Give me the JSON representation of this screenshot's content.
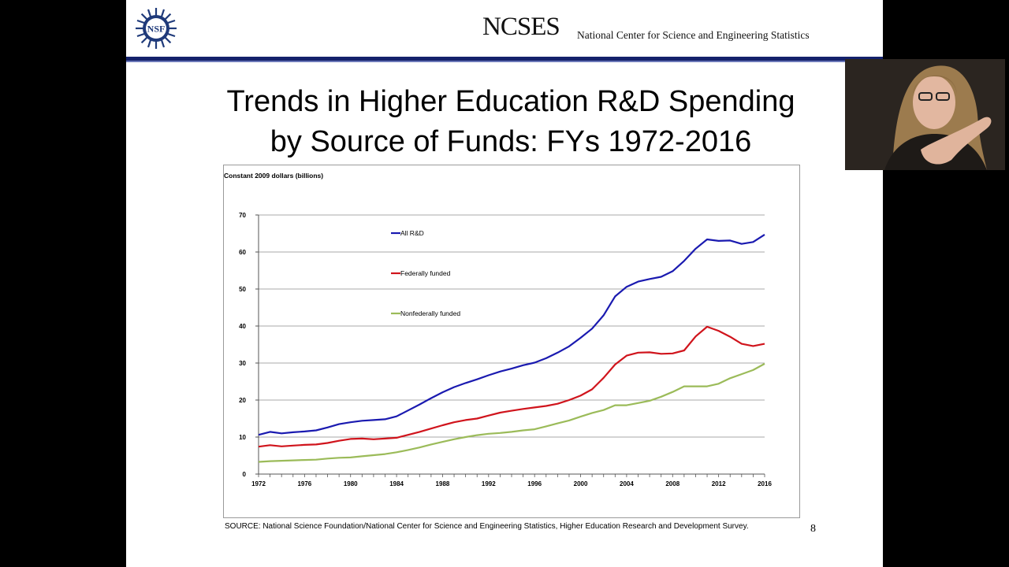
{
  "header": {
    "nsf_logo_text": "NSF",
    "ncses_wordmark": "NCSES",
    "ncses_fullname": "National Center for Science and Engineering Statistics"
  },
  "slide": {
    "title_line1": "Trends in Higher Education R&D Spending",
    "title_line2": "by Source of Funds: FYs 1972-2016",
    "source": "SOURCE: National Science Foundation/National Center for Science and Engineering Statistics, Higher Education Research and Development Survey.",
    "page_number": "8"
  },
  "colors": {
    "header_rule": "#14216b",
    "all_rd": "#1a1ab0",
    "federal": "#d0141c",
    "nonfederal": "#9bbb59"
  },
  "chart_data": {
    "type": "line",
    "ylabel": "Constant 2009 dollars (billions)",
    "xlabel": "",
    "ylim": [
      0,
      70
    ],
    "xlim": [
      1972,
      2016
    ],
    "yticks": [
      0,
      10,
      20,
      30,
      40,
      50,
      60,
      70
    ],
    "xticks": [
      1972,
      1976,
      1980,
      1984,
      1988,
      1992,
      1996,
      2000,
      2004,
      2008,
      2012,
      2016
    ],
    "grid": true,
    "legend_position": "inside-top-left",
    "x": [
      1972,
      1973,
      1974,
      1975,
      1976,
      1977,
      1978,
      1979,
      1980,
      1981,
      1982,
      1983,
      1984,
      1985,
      1986,
      1987,
      1988,
      1989,
      1990,
      1991,
      1992,
      1993,
      1994,
      1995,
      1996,
      1997,
      1998,
      1999,
      2000,
      2001,
      2002,
      2003,
      2004,
      2005,
      2006,
      2007,
      2008,
      2009,
      2010,
      2011,
      2012,
      2013,
      2014,
      2015,
      2016
    ],
    "series": [
      {
        "name": "All R&D",
        "color": "#1a1ab0",
        "values": [
          10.6,
          11.4,
          11.0,
          11.3,
          11.5,
          11.8,
          12.6,
          13.5,
          14.0,
          14.4,
          14.6,
          14.8,
          15.6,
          17.2,
          18.8,
          20.5,
          22.1,
          23.5,
          24.6,
          25.6,
          26.7,
          27.7,
          28.5,
          29.4,
          30.1,
          31.3,
          32.8,
          34.5,
          36.8,
          39.3,
          42.9,
          48.0,
          50.6,
          52.0,
          52.7,
          53.3,
          54.8,
          57.6,
          60.9,
          63.4,
          63.0,
          63.1,
          62.2,
          62.7,
          64.7
        ]
      },
      {
        "name": "Federally funded",
        "color": "#d0141c",
        "values": [
          7.4,
          7.8,
          7.5,
          7.7,
          7.9,
          8.0,
          8.4,
          9.0,
          9.5,
          9.6,
          9.4,
          9.6,
          9.8,
          10.6,
          11.4,
          12.3,
          13.2,
          14.0,
          14.6,
          15.0,
          15.8,
          16.6,
          17.1,
          17.6,
          18.0,
          18.4,
          19.0,
          20.0,
          21.2,
          22.9,
          26.0,
          29.6,
          32.0,
          32.8,
          32.9,
          32.5,
          32.6,
          33.4,
          37.2,
          39.8,
          38.7,
          37.1,
          35.2,
          34.6,
          35.2
        ]
      },
      {
        "name": "Nonfederally funded",
        "color": "#9bbb59",
        "values": [
          3.3,
          3.5,
          3.6,
          3.7,
          3.8,
          3.9,
          4.2,
          4.4,
          4.5,
          4.8,
          5.1,
          5.4,
          5.9,
          6.5,
          7.2,
          8.0,
          8.7,
          9.4,
          10.0,
          10.5,
          10.9,
          11.1,
          11.4,
          11.8,
          12.1,
          12.9,
          13.7,
          14.5,
          15.5,
          16.5,
          17.3,
          18.6,
          18.6,
          19.2,
          19.8,
          20.9,
          22.2,
          23.7,
          23.7,
          23.7,
          24.4,
          25.9,
          27.0,
          28.1,
          29.8
        ]
      }
    ]
  },
  "webcam": {
    "description_icon": "presenter-video-icon"
  }
}
